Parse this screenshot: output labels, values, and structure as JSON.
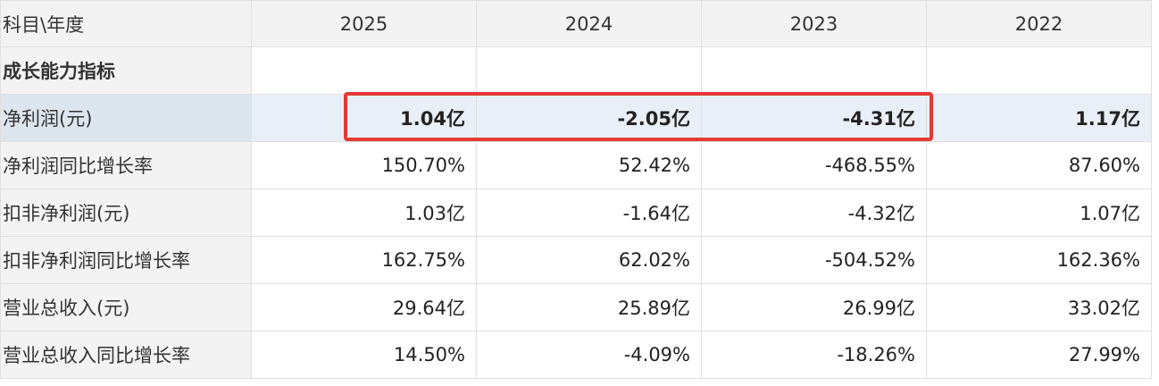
{
  "header": {
    "label": "科目\\年度",
    "years": [
      "2025",
      "2024",
      "2023",
      "2022"
    ]
  },
  "section_title": "成长能力指标",
  "rows": [
    {
      "label": "净利润(元)",
      "values": [
        "1.04亿",
        "-2.05亿",
        "-4.31亿",
        "1.17亿"
      ],
      "highlighted": true
    },
    {
      "label": "净利润同比增长率",
      "values": [
        "150.70%",
        "52.42%",
        "-468.55%",
        "87.60%"
      ]
    },
    {
      "label": "扣非净利润(元)",
      "values": [
        "1.03亿",
        "-1.64亿",
        "-4.32亿",
        "1.07亿"
      ]
    },
    {
      "label": "扣非净利润同比增长率",
      "values": [
        "162.75%",
        "62.02%",
        "-504.52%",
        "162.36%"
      ]
    },
    {
      "label": "营业总收入(元)",
      "values": [
        "29.64亿",
        "25.89亿",
        "26.99亿",
        "33.02亿"
      ]
    },
    {
      "label": "营业总收入同比增长率",
      "values": [
        "14.50%",
        "-4.09%",
        "-18.26%",
        "27.99%"
      ]
    }
  ],
  "colors": {
    "highlight_box": "#e53935",
    "highlight_row": "#e9eff7"
  }
}
